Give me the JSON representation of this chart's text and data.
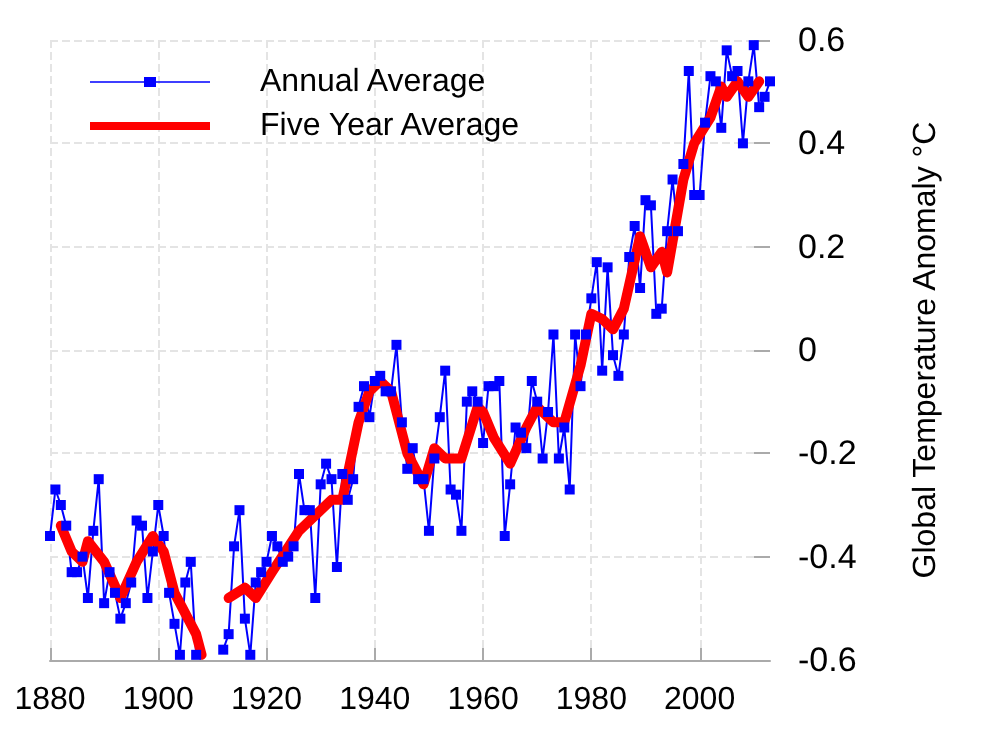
{
  "chart_data": {
    "type": "line",
    "ylabel": "Global Temperature Anomaly °C",
    "xlim": [
      1880,
      2013
    ],
    "xticks": [
      1880,
      1900,
      1920,
      1940,
      1960,
      1980,
      2000
    ],
    "ylim": [
      -0.6,
      0.6
    ],
    "yticks": [
      -0.6,
      -0.4,
      -0.2,
      0,
      0.2,
      0.4,
      0.6
    ],
    "grid": true,
    "legend": "top left",
    "series": [
      {
        "name": "Annual Average",
        "color": "#0000ff",
        "marker": "square",
        "x": [
          1880,
          1881,
          1882,
          1883,
          1884,
          1885,
          1886,
          1887,
          1888,
          1889,
          1890,
          1891,
          1892,
          1893,
          1894,
          1895,
          1896,
          1897,
          1898,
          1899,
          1900,
          1901,
          1902,
          1903,
          1904,
          1905,
          1906,
          1907,
          1908,
          1909,
          1910,
          1911,
          1912,
          1913,
          1914,
          1915,
          1916,
          1917,
          1918,
          1919,
          1920,
          1921,
          1922,
          1923,
          1924,
          1925,
          1926,
          1927,
          1928,
          1929,
          1930,
          1931,
          1932,
          1933,
          1934,
          1935,
          1936,
          1937,
          1938,
          1939,
          1940,
          1941,
          1942,
          1943,
          1944,
          1945,
          1946,
          1947,
          1948,
          1949,
          1950,
          1951,
          1952,
          1953,
          1954,
          1955,
          1956,
          1957,
          1958,
          1959,
          1960,
          1961,
          1962,
          1963,
          1964,
          1965,
          1966,
          1967,
          1968,
          1969,
          1970,
          1971,
          1972,
          1973,
          1974,
          1975,
          1976,
          1977,
          1978,
          1979,
          1980,
          1981,
          1982,
          1983,
          1984,
          1985,
          1986,
          1987,
          1988,
          1989,
          1990,
          1991,
          1992,
          1993,
          1994,
          1995,
          1996,
          1997,
          1998,
          1999,
          2000,
          2001,
          2002,
          2003,
          2004,
          2005,
          2006,
          2007,
          2008,
          2009,
          2010,
          2011,
          2012,
          2013
        ],
        "values": [
          -0.36,
          -0.27,
          -0.3,
          -0.34,
          -0.43,
          -0.43,
          -0.4,
          -0.48,
          -0.35,
          -0.25,
          -0.49,
          -0.43,
          -0.47,
          -0.52,
          -0.49,
          -0.45,
          -0.33,
          -0.34,
          -0.48,
          -0.39,
          -0.3,
          -0.36,
          -0.47,
          -0.53,
          -0.59,
          -0.45,
          -0.41,
          -0.59,
          null,
          null,
          null,
          null,
          -0.58,
          -0.55,
          -0.38,
          -0.31,
          -0.52,
          -0.59,
          -0.45,
          -0.43,
          -0.41,
          -0.36,
          -0.38,
          -0.41,
          -0.4,
          -0.38,
          -0.24,
          -0.31,
          -0.31,
          -0.48,
          -0.26,
          -0.22,
          -0.25,
          -0.42,
          -0.24,
          -0.29,
          -0.25,
          -0.11,
          -0.07,
          -0.13,
          -0.06,
          -0.05,
          -0.08,
          -0.08,
          0.01,
          -0.14,
          -0.23,
          -0.19,
          -0.25,
          -0.25,
          -0.35,
          -0.21,
          -0.13,
          -0.04,
          -0.27,
          -0.28,
          -0.35,
          -0.1,
          -0.08,
          -0.1,
          -0.18,
          -0.07,
          -0.07,
          -0.06,
          -0.36,
          -0.26,
          -0.15,
          -0.16,
          -0.19,
          -0.06,
          -0.1,
          -0.21,
          -0.12,
          0.03,
          -0.21,
          -0.15,
          -0.27,
          0.03,
          -0.07,
          0.03,
          0.1,
          0.17,
          -0.04,
          0.16,
          -0.01,
          -0.05,
          0.03,
          0.18,
          0.24,
          0.12,
          0.29,
          0.28,
          0.07,
          0.08,
          0.23,
          0.33,
          0.23,
          0.36,
          0.54,
          0.3,
          0.3,
          0.44,
          0.53,
          0.52,
          0.43,
          0.58,
          0.53,
          0.54,
          0.4,
          0.52,
          0.59,
          0.47,
          0.49,
          0.52
        ]
      },
      {
        "name": "Five Year Average",
        "color": "#ff0000",
        "marker": "none",
        "x": [
          1882,
          1884,
          1886,
          1887,
          1890,
          1893,
          1896,
          1899,
          1901,
          1903,
          1907,
          1908,
          1910,
          1913,
          1916,
          1918,
          1921,
          1926,
          1929,
          1932,
          1934,
          1937,
          1939,
          1941,
          1943,
          1946,
          1949,
          1951,
          1953,
          1956,
          1959,
          1960,
          1962,
          1965,
          1968,
          1970,
          1973,
          1975,
          1978,
          1980,
          1982,
          1984,
          1986,
          1989,
          1991,
          1993,
          1994,
          1997,
          1999,
          2002,
          2004,
          2005,
          2007,
          2009,
          2011
        ],
        "values": [
          -0.34,
          -0.39,
          -0.41,
          -0.37,
          -0.41,
          -0.48,
          -0.41,
          -0.36,
          -0.39,
          -0.47,
          -0.55,
          -0.59,
          null,
          -0.48,
          -0.46,
          -0.48,
          -0.43,
          -0.35,
          -0.32,
          -0.29,
          -0.29,
          -0.14,
          -0.08,
          -0.06,
          -0.08,
          -0.2,
          -0.26,
          -0.19,
          -0.21,
          -0.21,
          -0.11,
          -0.12,
          -0.17,
          -0.22,
          -0.15,
          -0.11,
          -0.14,
          -0.14,
          -0.03,
          0.07,
          0.06,
          0.04,
          0.08,
          0.22,
          0.16,
          0.19,
          0.15,
          0.33,
          0.4,
          0.45,
          0.51,
          0.49,
          0.52,
          0.49,
          0.52
        ]
      }
    ]
  }
}
